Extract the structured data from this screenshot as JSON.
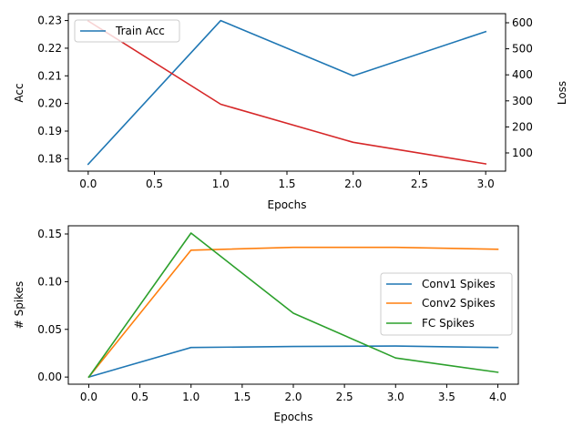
{
  "chart_data": [
    {
      "type": "line",
      "xlabel": "Epochs",
      "ylabel": "Acc",
      "y2label": "Loss",
      "xlim": [
        -0.15,
        3.15
      ],
      "ylim": [
        0.1755,
        0.2325
      ],
      "y2lim": [
        30,
        635
      ],
      "xticks": [
        "0.0",
        "0.5",
        "1.0",
        "1.5",
        "2.0",
        "2.5",
        "3.0"
      ],
      "yticks": [
        "0.18",
        "0.19",
        "0.20",
        "0.21",
        "0.22",
        "0.23"
      ],
      "y2ticks": [
        "100",
        "200",
        "300",
        "400",
        "500",
        "600"
      ],
      "grid": false,
      "legend": "upper-left",
      "series": [
        {
          "name": "Train Acc",
          "axis": "left",
          "color": "#1f77b4",
          "x": [
            0,
            1,
            2,
            3
          ],
          "values": [
            0.178,
            0.23,
            0.21,
            0.226
          ]
        },
        {
          "axis": "right",
          "color": "#d62728",
          "x": [
            0,
            1,
            2,
            3
          ],
          "values": [
            607,
            287,
            141,
            58
          ]
        }
      ]
    },
    {
      "type": "line",
      "xlabel": "Epochs",
      "ylabel": "# Spikes",
      "xlim": [
        -0.2,
        4.2
      ],
      "ylim": [
        -0.0075,
        0.1586
      ],
      "xticks": [
        "0.0",
        "0.5",
        "1.0",
        "1.5",
        "2.0",
        "2.5",
        "3.0",
        "3.5",
        "4.0"
      ],
      "yticks": [
        "0.00",
        "0.05",
        "0.10",
        "0.15"
      ],
      "grid": false,
      "legend": "center-right",
      "series": [
        {
          "name": "Conv1 Spikes",
          "color": "#1f77b4",
          "x": [
            0,
            1,
            2,
            3,
            4
          ],
          "values": [
            0.0,
            0.031,
            0.032,
            0.0325,
            0.031
          ]
        },
        {
          "name": "Conv2 Spikes",
          "color": "#ff7f0e",
          "x": [
            0,
            1,
            2,
            3,
            4
          ],
          "values": [
            0.0,
            0.133,
            0.136,
            0.136,
            0.134
          ]
        },
        {
          "name": "FC Spikes",
          "color": "#2ca02c",
          "x": [
            0,
            1,
            2,
            3,
            4
          ],
          "values": [
            0.0,
            0.151,
            0.067,
            0.02,
            0.005
          ]
        }
      ]
    }
  ]
}
